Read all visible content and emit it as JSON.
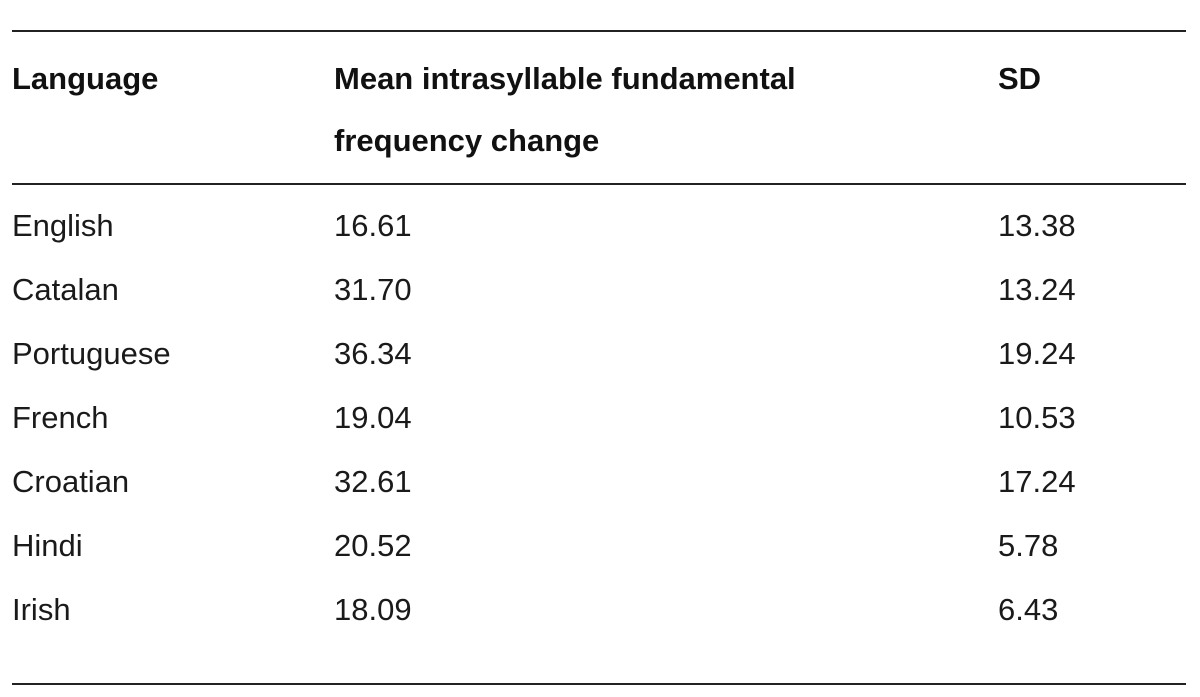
{
  "table": {
    "headers": {
      "language": "Language",
      "mean": "Mean intrasyllable fundamental frequency change",
      "sd": "SD"
    },
    "rows": [
      {
        "language": "English",
        "mean": "16.61",
        "sd": "13.38"
      },
      {
        "language": "Catalan",
        "mean": "31.70",
        "sd": "13.24"
      },
      {
        "language": "Portuguese",
        "mean": "36.34",
        "sd": "19.24"
      },
      {
        "language": "French",
        "mean": "19.04",
        "sd": "10.53"
      },
      {
        "language": "Croatian",
        "mean": "32.61",
        "sd": "17.24"
      },
      {
        "language": "Hindi",
        "mean": "20.52",
        "sd": "5.78"
      },
      {
        "language": "Irish",
        "mean": "18.09",
        "sd": "6.43"
      }
    ]
  }
}
